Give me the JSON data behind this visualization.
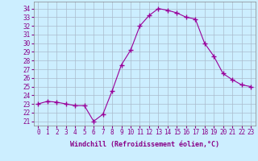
{
  "hours": [
    0,
    1,
    2,
    3,
    4,
    5,
    6,
    7,
    8,
    9,
    10,
    11,
    12,
    13,
    14,
    15,
    16,
    17,
    18,
    19,
    20,
    21,
    22,
    23
  ],
  "windchill": [
    23.0,
    23.3,
    23.2,
    23.0,
    22.8,
    22.8,
    21.0,
    21.8,
    24.5,
    27.5,
    29.2,
    32.0,
    33.2,
    34.0,
    33.8,
    33.5,
    33.0,
    32.8,
    30.0,
    28.5,
    26.5,
    25.8,
    25.2,
    25.0
  ],
  "line_color": "#990099",
  "marker": "+",
  "marker_size": 4,
  "bg_color": "#cceeff",
  "grid_color": "#aabbcc",
  "xlabel": "Windchill (Refroidissement éolien,°C)",
  "ylabel_ticks": [
    21,
    22,
    23,
    24,
    25,
    26,
    27,
    28,
    29,
    30,
    31,
    32,
    33,
    34
  ],
  "ylim": [
    20.5,
    34.8
  ],
  "xlim": [
    -0.5,
    23.5
  ],
  "tick_fontsize": 5.5,
  "xlabel_fontsize": 6.0
}
